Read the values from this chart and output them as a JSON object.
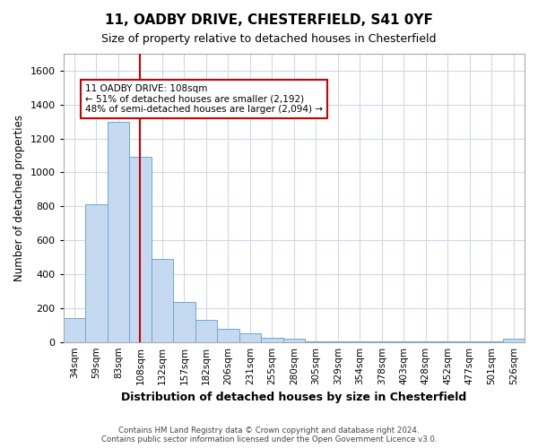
{
  "title1": "11, OADBY DRIVE, CHESTERFIELD, S41 0YF",
  "title2": "Size of property relative to detached houses in Chesterfield",
  "xlabel": "Distribution of detached houses by size in Chesterfield",
  "ylabel": "Number of detached properties",
  "categories": [
    "34sqm",
    "59sqm",
    "83sqm",
    "108sqm",
    "132sqm",
    "157sqm",
    "182sqm",
    "206sqm",
    "231sqm",
    "255sqm",
    "280sqm",
    "305sqm",
    "329sqm",
    "354sqm",
    "378sqm",
    "403sqm",
    "428sqm",
    "452sqm",
    "477sqm",
    "501sqm",
    "526sqm"
  ],
  "values": [
    140,
    810,
    1300,
    1090,
    490,
    235,
    130,
    75,
    50,
    25,
    20,
    5,
    5,
    3,
    2,
    1,
    1,
    1,
    1,
    1,
    20
  ],
  "bar_color": "#c5d9f0",
  "bar_edge_color": "#6aaad4",
  "vline_x": 3,
  "vline_color": "#cc0000",
  "annotation_text": "11 OADBY DRIVE: 108sqm\n← 51% of detached houses are smaller (2,192)\n48% of semi-detached houses are larger (2,094) →",
  "annotation_box_color": "white",
  "annotation_box_edge_color": "#cc0000",
  "ylim": [
    0,
    1700
  ],
  "yticks": [
    0,
    200,
    400,
    600,
    800,
    1000,
    1200,
    1400,
    1600
  ],
  "footer_text": "Contains HM Land Registry data © Crown copyright and database right 2024.\nContains public sector information licensed under the Open Government Licence v3.0.",
  "grid_color": "#d0d8e8",
  "background_color": "white",
  "ax_background": "white"
}
